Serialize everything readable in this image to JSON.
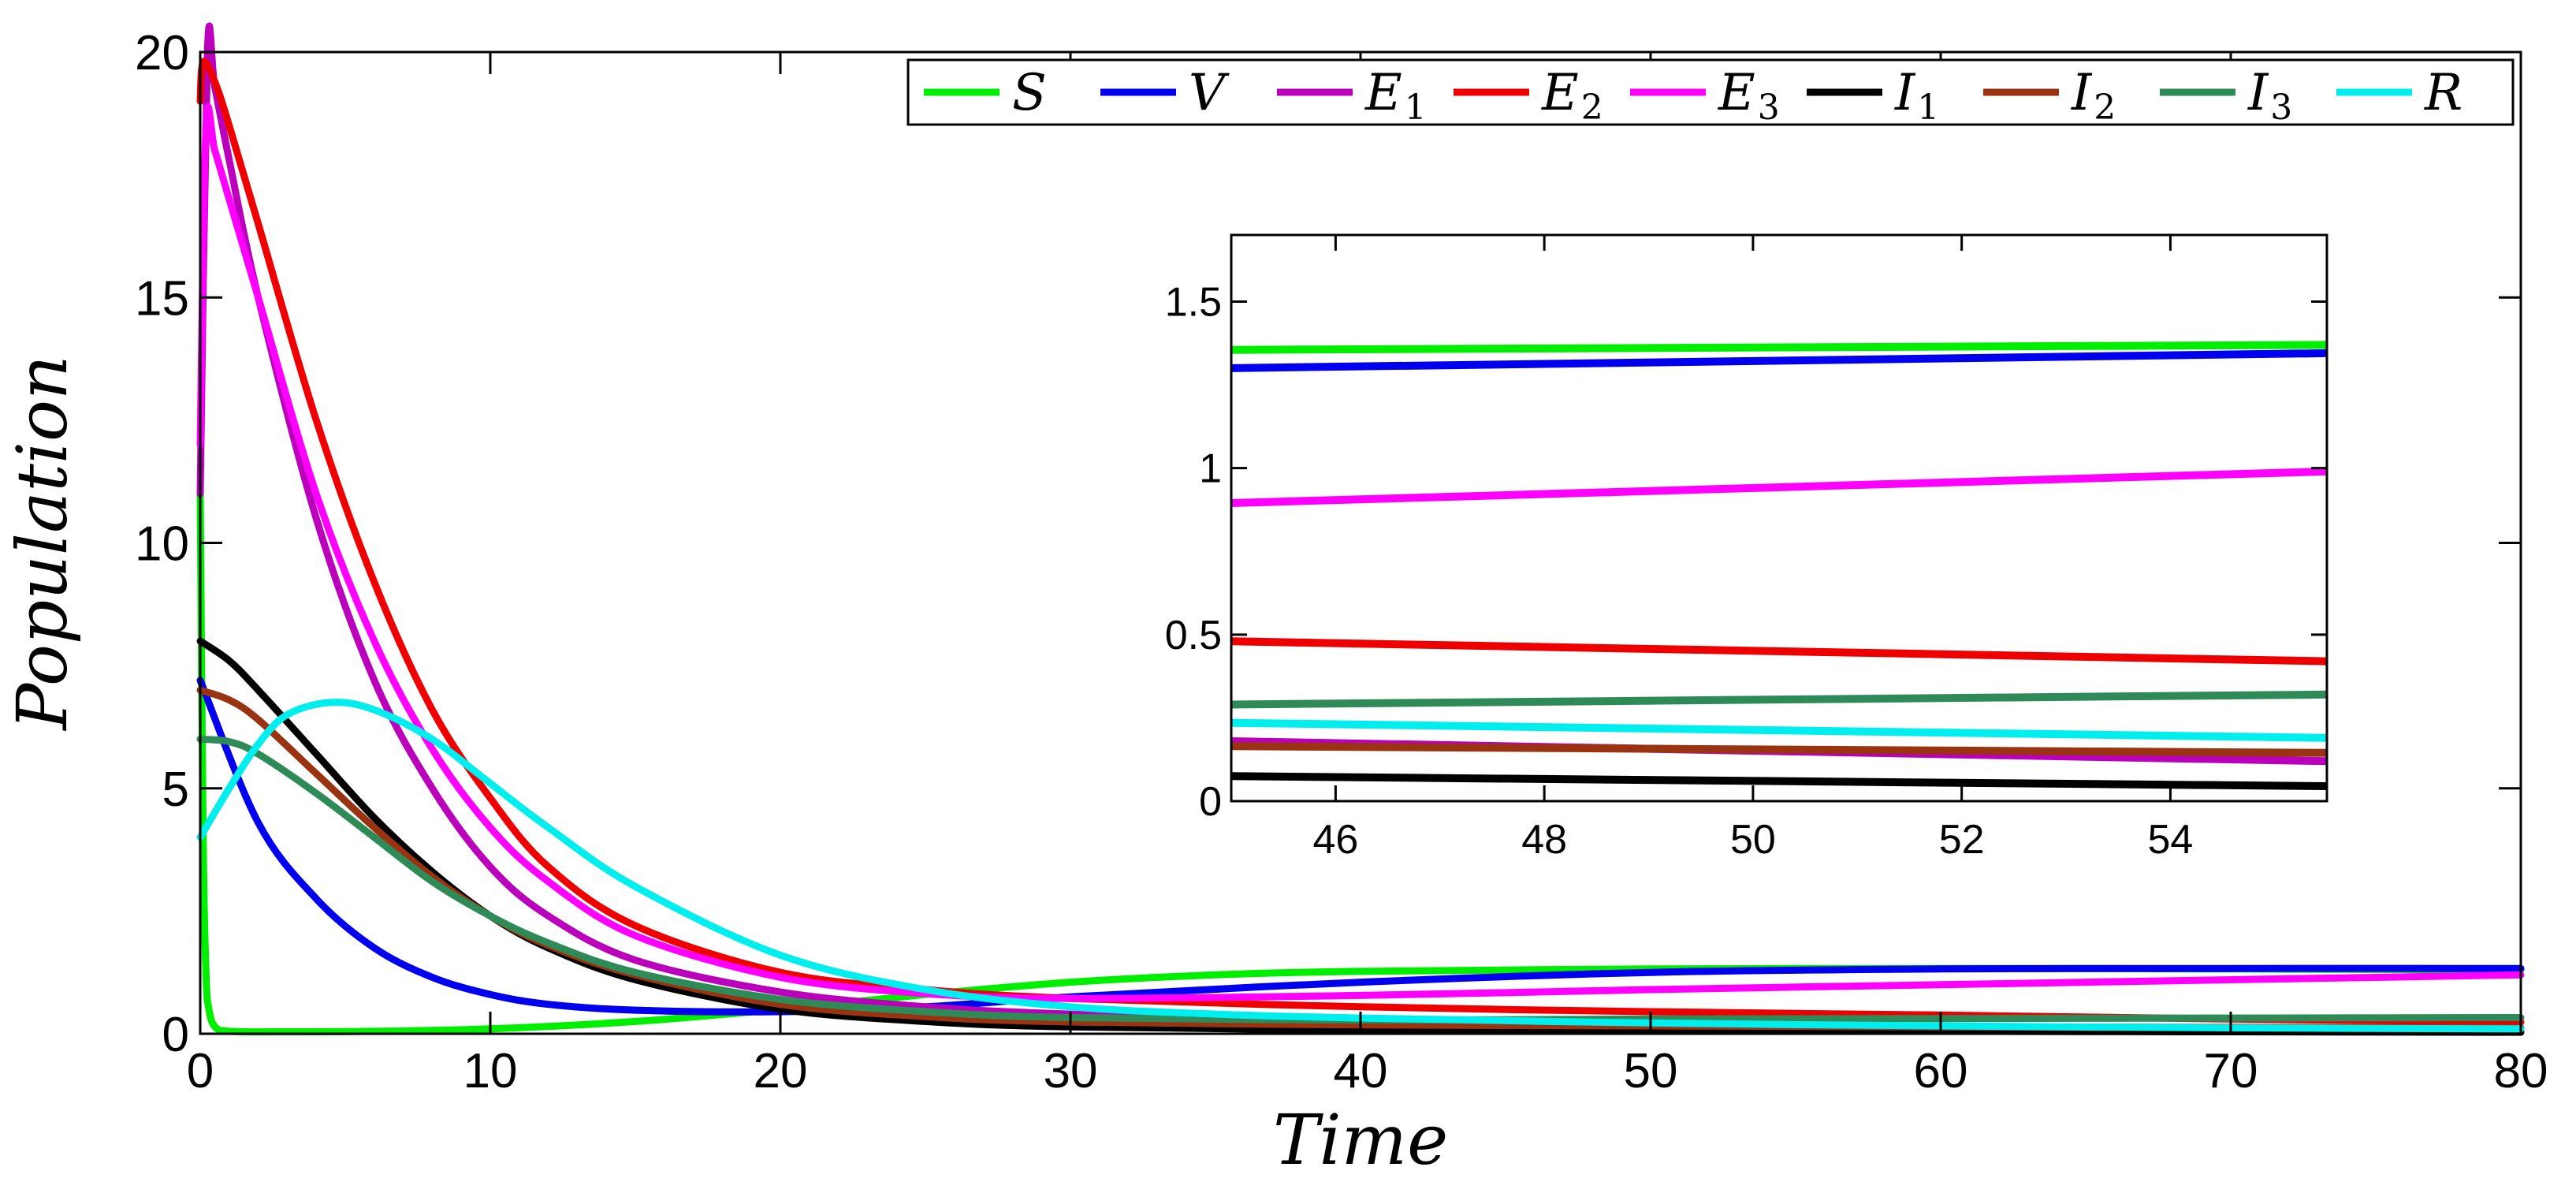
{
  "chart_data": [
    {
      "type": "line",
      "role": "main",
      "xlabel": "Time",
      "ylabel": "Population",
      "xlim": [
        0,
        80
      ],
      "ylim": [
        0,
        20
      ],
      "xticks": [
        0,
        10,
        20,
        30,
        40,
        50,
        60,
        70,
        80
      ],
      "yticks": [
        0,
        5,
        10,
        15,
        20
      ],
      "legend_position": "top-right",
      "legend": [
        "S",
        "V",
        "E1",
        "E2",
        "E3",
        "I1",
        "I2",
        "I3",
        "R"
      ],
      "series": [
        {
          "name": "S",
          "color": "#00ee00",
          "x": [
            0,
            0.1,
            0.2,
            0.3,
            0.5,
            1,
            3,
            6,
            10,
            15,
            20,
            25,
            30,
            35,
            40,
            50,
            60,
            70,
            80
          ],
          "y": [
            11,
            4,
            1.2,
            0.5,
            0.15,
            0.05,
            0.04,
            0.05,
            0.1,
            0.25,
            0.5,
            0.8,
            1.05,
            1.2,
            1.27,
            1.32,
            1.33,
            1.32,
            1.3
          ]
        },
        {
          "name": "V",
          "color": "#0000ee",
          "x": [
            0,
            2,
            4,
            6,
            8,
            10,
            12,
            15,
            20,
            25,
            30,
            40,
            50,
            60,
            70,
            80
          ],
          "y": [
            7.2,
            4.3,
            2.75,
            1.75,
            1.15,
            0.8,
            0.6,
            0.48,
            0.45,
            0.55,
            0.75,
            1.05,
            1.25,
            1.32,
            1.33,
            1.33
          ]
        },
        {
          "name": "E1",
          "color": "#bb00bb",
          "x": [
            0,
            0.25,
            0.5,
            1,
            2,
            4,
            6,
            8,
            10,
            12,
            15,
            20,
            25,
            30,
            40,
            50,
            60,
            70,
            80
          ],
          "y": [
            11,
            20,
            19.3,
            17.8,
            15,
            10.5,
            7.2,
            5,
            3.4,
            2.4,
            1.5,
            0.85,
            0.55,
            0.4,
            0.25,
            0.17,
            0.14,
            0.12,
            0.1
          ]
        },
        {
          "name": "E2",
          "color": "#ee0000",
          "x": [
            0,
            0.1,
            0.5,
            1,
            2,
            4,
            6,
            8,
            10,
            12,
            15,
            20,
            25,
            30,
            40,
            50,
            60,
            70,
            80
          ],
          "y": [
            19,
            19.8,
            19.4,
            18.5,
            16.5,
            12.5,
            9.2,
            6.6,
            4.8,
            3.4,
            2.2,
            1.25,
            0.9,
            0.72,
            0.55,
            0.45,
            0.38,
            0.3,
            0.24
          ]
        },
        {
          "name": "E3",
          "color": "#ff00ff",
          "x": [
            0,
            0.2,
            0.5,
            1,
            2,
            4,
            6,
            8,
            10,
            12,
            15,
            20,
            25,
            30,
            40,
            50,
            60,
            70,
            80
          ],
          "y": [
            12,
            18.5,
            18,
            17,
            15,
            11,
            8,
            5.8,
            4.2,
            3.1,
            2,
            1.15,
            0.82,
            0.72,
            0.78,
            0.9,
            1.0,
            1.1,
            1.2
          ]
        },
        {
          "name": "I1",
          "color": "#000000",
          "x": [
            0,
            1,
            2,
            4,
            6,
            8,
            10,
            12,
            15,
            20,
            25,
            30,
            40,
            50,
            60,
            70,
            80
          ],
          "y": [
            8,
            7.6,
            7,
            5.7,
            4.4,
            3.3,
            2.4,
            1.75,
            1.1,
            0.5,
            0.25,
            0.14,
            0.08,
            0.06,
            0.05,
            0.04,
            0.03
          ]
        },
        {
          "name": "I2",
          "color": "#993311",
          "x": [
            0,
            1,
            2,
            4,
            6,
            8,
            10,
            12,
            15,
            20,
            25,
            30,
            40,
            50,
            60,
            70,
            80
          ],
          "y": [
            7,
            6.8,
            6.4,
            5.3,
            4.2,
            3.2,
            2.4,
            1.8,
            1.2,
            0.6,
            0.35,
            0.24,
            0.18,
            0.16,
            0.14,
            0.13,
            0.12
          ]
        },
        {
          "name": "I3",
          "color": "#2e8b57",
          "x": [
            0,
            1,
            2,
            4,
            6,
            8,
            10,
            12,
            15,
            20,
            25,
            30,
            40,
            50,
            60,
            70,
            80
          ],
          "y": [
            6,
            5.95,
            5.7,
            4.9,
            4,
            3.1,
            2.4,
            1.85,
            1.25,
            0.7,
            0.45,
            0.33,
            0.28,
            0.3,
            0.31,
            0.32,
            0.33
          ]
        },
        {
          "name": "R",
          "color": "#00eeee",
          "x": [
            0,
            1,
            2,
            3,
            4.5,
            6,
            8,
            10,
            12,
            15,
            20,
            25,
            30,
            35,
            40,
            50,
            60,
            70,
            80
          ],
          "y": [
            4,
            5,
            5.9,
            6.5,
            6.75,
            6.6,
            6,
            5.1,
            4.2,
            3,
            1.6,
            0.9,
            0.55,
            0.4,
            0.32,
            0.22,
            0.16,
            0.12,
            0.1
          ]
        }
      ]
    },
    {
      "type": "line",
      "role": "inset",
      "xlim": [
        45,
        55.5
      ],
      "ylim": [
        0,
        1.7
      ],
      "xticks": [
        46,
        48,
        50,
        52,
        54
      ],
      "yticks": [
        0,
        0.5,
        1,
        1.5
      ],
      "series": [
        {
          "name": "S",
          "color": "#00ee00",
          "x": [
            45,
            55.5
          ],
          "y": [
            1.355,
            1.37
          ]
        },
        {
          "name": "V",
          "color": "#0000ee",
          "x": [
            45,
            55.5
          ],
          "y": [
            1.3,
            1.345
          ]
        },
        {
          "name": "E3",
          "color": "#ff00ff",
          "x": [
            45,
            55.5
          ],
          "y": [
            0.895,
            0.99
          ]
        },
        {
          "name": "E2",
          "color": "#ee0000",
          "x": [
            45,
            55.5
          ],
          "y": [
            0.48,
            0.42
          ]
        },
        {
          "name": "I3",
          "color": "#2e8b57",
          "x": [
            45,
            55.5
          ],
          "y": [
            0.29,
            0.32
          ]
        },
        {
          "name": "R",
          "color": "#00eeee",
          "x": [
            45,
            55.5
          ],
          "y": [
            0.235,
            0.19
          ]
        },
        {
          "name": "E1",
          "color": "#bb00bb",
          "x": [
            45,
            55.5
          ],
          "y": [
            0.18,
            0.12
          ]
        },
        {
          "name": "I2",
          "color": "#993311",
          "x": [
            45,
            55.5
          ],
          "y": [
            0.165,
            0.145
          ]
        },
        {
          "name": "I1",
          "color": "#000000",
          "x": [
            45,
            55.5
          ],
          "y": [
            0.075,
            0.045
          ]
        }
      ]
    }
  ]
}
